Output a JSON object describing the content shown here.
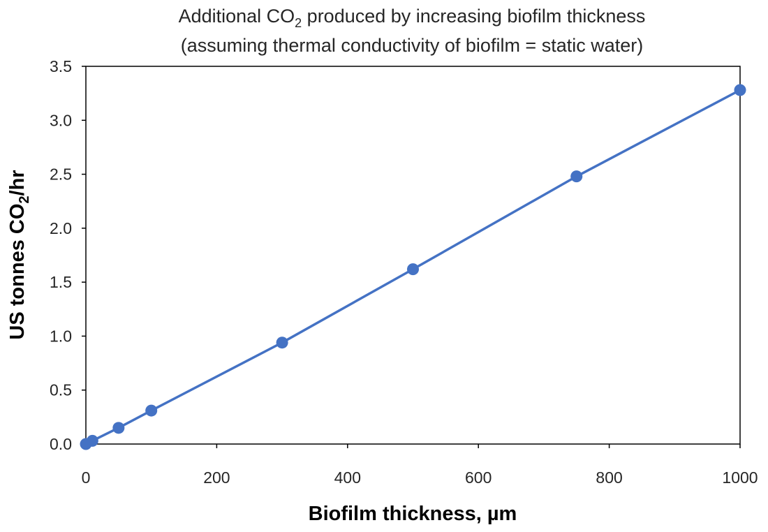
{
  "chart_data": {
    "type": "line",
    "title": {
      "pre": "Additional CO",
      "sub": "2",
      "post": " produced by increasing biofilm thickness"
    },
    "subtitle": "(assuming thermal conductivity of biofilm = static water)",
    "xlabel": "Biofilm thickness, µm",
    "ylabel": {
      "pre": "US tonnes CO",
      "sub": "2",
      "post": "/hr"
    },
    "xlim": [
      0,
      1000
    ],
    "ylim": [
      0,
      3.5
    ],
    "x_ticks": [
      "0",
      "200",
      "400",
      "600",
      "800",
      "1000"
    ],
    "y_ticks": [
      "0.0",
      "0.5",
      "1.0",
      "1.5",
      "2.0",
      "2.5",
      "3.0",
      "3.5"
    ],
    "grid": false,
    "legend": "none",
    "series": [
      {
        "color": "#4472C4",
        "x": [
          0,
          10,
          50,
          100,
          300,
          500,
          750,
          1000
        ],
        "y": [
          0.0,
          0.03,
          0.15,
          0.31,
          0.94,
          1.62,
          2.48,
          3.28
        ]
      }
    ]
  }
}
